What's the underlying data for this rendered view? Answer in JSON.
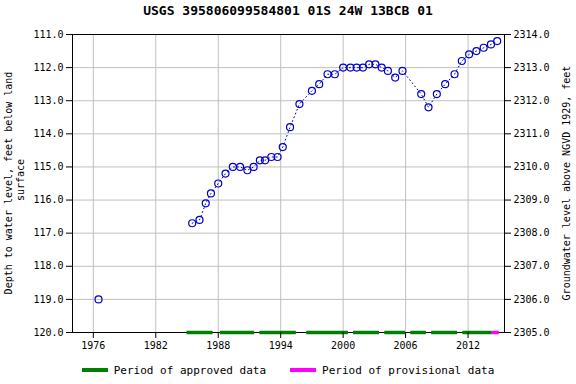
{
  "chart_data": {
    "type": "line",
    "title": "USGS 395806099584801 01S 24W 13BCB 01",
    "ylabel": "Depth to water level, feet below land\n surface",
    "y2label": "Groundwater level above NGVD 1929, feet",
    "xlim": [
      1974,
      2015.5
    ],
    "xticks": [
      1976,
      1982,
      1988,
      1994,
      2000,
      2006,
      2012
    ],
    "ylim": [
      120.0,
      111.0
    ],
    "yticks": [
      {
        "value": 111.0,
        "label": "111.0"
      },
      {
        "value": 112.0,
        "label": "112.0"
      },
      {
        "value": 113.0,
        "label": "113.0"
      },
      {
        "value": 114.0,
        "label": "114.0"
      },
      {
        "value": 115.0,
        "label": "115.0"
      },
      {
        "value": 116.0,
        "label": "116.0"
      },
      {
        "value": 117.0,
        "label": "117.0"
      },
      {
        "value": 118.0,
        "label": "118.0"
      },
      {
        "value": 119.0,
        "label": "119.0"
      },
      {
        "value": 120.0,
        "label": "120.0"
      }
    ],
    "y2lim": [
      2305.0,
      2314.0
    ],
    "y2ticks": [
      {
        "value": 2305.0,
        "label": "2305.0"
      },
      {
        "value": 2306.0,
        "label": "2306.0"
      },
      {
        "value": 2307.0,
        "label": "2307.0"
      },
      {
        "value": 2308.0,
        "label": "2308.0"
      },
      {
        "value": 2309.0,
        "label": "2309.0"
      },
      {
        "value": 2310.0,
        "label": "2310.0"
      },
      {
        "value": 2311.0,
        "label": "2311.0"
      },
      {
        "value": 2312.0,
        "label": "2312.0"
      },
      {
        "value": 2313.0,
        "label": "2313.0"
      },
      {
        "value": 2314.0,
        "label": "2314.0"
      }
    ],
    "grid": true,
    "legend": "bottom",
    "series": [
      {
        "type": "line",
        "color": "#0000cc",
        "marker": "circle",
        "line_style": "none",
        "x": [
          1976.5
        ],
        "values": [
          119.0
        ]
      },
      {
        "type": "line",
        "color": "#0000cc",
        "marker": "circle",
        "line_style": "dotted",
        "x": [
          1985.5,
          1986.2,
          1986.8,
          1987.3,
          1988.0,
          1988.7,
          1989.4,
          1990.1,
          1990.8,
          1991.4,
          1992.0,
          1992.5,
          1993.1,
          1993.7,
          1994.2,
          1994.9,
          1995.8,
          1997.0,
          1997.7,
          1998.5,
          1999.2,
          2000.0,
          2000.7,
          2001.3,
          2001.9,
          2002.5,
          2003.1,
          2003.7,
          2004.3,
          2005.0,
          2005.7,
          2007.5,
          2008.2,
          2009.0,
          2009.8,
          2010.7,
          2011.4,
          2012.1,
          2012.8,
          2013.5,
          2014.2,
          2014.8
        ],
        "values": [
          116.7,
          116.6,
          116.1,
          115.8,
          115.5,
          115.2,
          115.0,
          115.0,
          115.1,
          115.0,
          114.8,
          114.8,
          114.7,
          114.7,
          114.4,
          113.8,
          113.1,
          112.7,
          112.5,
          112.2,
          112.2,
          112.0,
          112.0,
          112.0,
          112.0,
          111.9,
          111.9,
          112.0,
          112.1,
          112.3,
          112.1,
          112.8,
          113.2,
          112.8,
          112.5,
          112.2,
          111.8,
          111.6,
          111.5,
          111.4,
          111.3,
          111.2
        ]
      },
      {
        "type": "range",
        "name": "Period of approved data",
        "color": "#008000",
        "y": 120.0,
        "ranges": [
          [
            1985.0,
            1987.5
          ],
          [
            1988.2,
            1991.5
          ],
          [
            1992.0,
            1995.5
          ],
          [
            1996.5,
            2000.5
          ],
          [
            2001.0,
            2003.5
          ],
          [
            2004.0,
            2006.0
          ],
          [
            2006.5,
            2008.0
          ],
          [
            2008.5,
            2011.0
          ],
          [
            2011.5,
            2014.3
          ]
        ]
      },
      {
        "type": "range",
        "name": "Period of provisional data",
        "color": "#ff00ff",
        "y": 120.0,
        "ranges": [
          [
            2014.3,
            2015.0
          ]
        ]
      }
    ]
  }
}
